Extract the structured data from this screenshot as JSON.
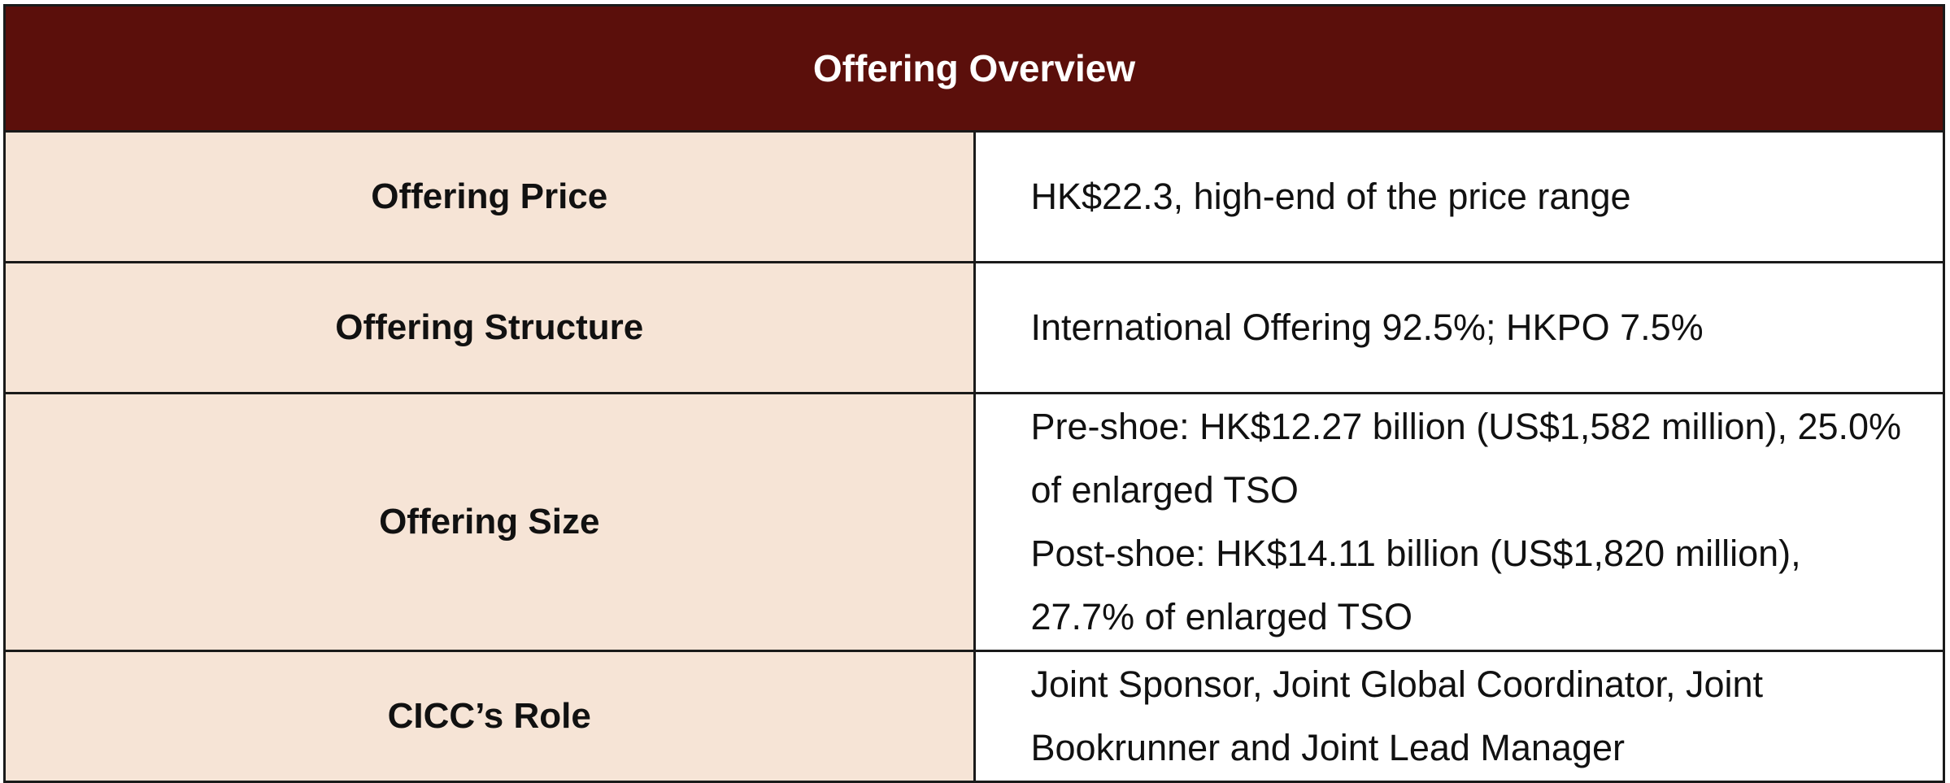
{
  "header": {
    "title": "Offering Overview"
  },
  "rows": [
    {
      "label": "Offering Price",
      "value": [
        "HK$22.3, high-end of the price range"
      ]
    },
    {
      "label": "Offering Structure",
      "value": [
        "International Offering 92.5%; HKPO 7.5%"
      ]
    },
    {
      "label": "Offering Size",
      "value": [
        "Pre-shoe: HK$12.27 billion (US$1,582 million), 25.0% of enlarged TSO",
        "Post-shoe: HK$14.11 billion (US$1,820 million), 27.7% of enlarged TSO"
      ]
    },
    {
      "label": "CICC’s Role",
      "value": [
        "Joint Sponsor, Joint Global Coordinator, Joint Bookrunner and Joint Lead Manager"
      ]
    }
  ]
}
